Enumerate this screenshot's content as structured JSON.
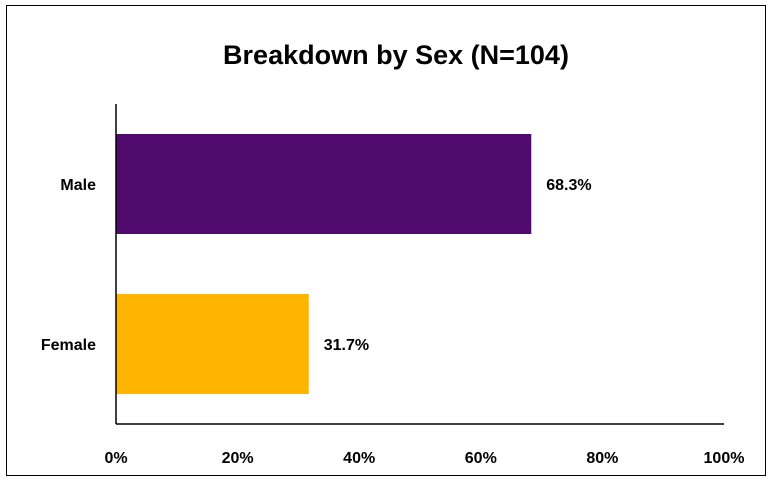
{
  "chart_data": {
    "type": "bar",
    "orientation": "horizontal",
    "title": "Breakdown by Sex (N=104)",
    "categories": [
      "Male",
      "Female"
    ],
    "values": [
      68.3,
      31.7
    ],
    "data_labels": [
      "68.3%",
      "31.7%"
    ],
    "colors": [
      "#4F0A6E",
      "#FFB500"
    ],
    "xlim": [
      0,
      100
    ],
    "x_ticks": [
      "0%",
      "20%",
      "40%",
      "60%",
      "80%",
      "100%"
    ],
    "x_tick_values": [
      0,
      20,
      40,
      60,
      80,
      100
    ],
    "xlabel": "",
    "ylabel": "",
    "grid": false,
    "legend": "none"
  }
}
